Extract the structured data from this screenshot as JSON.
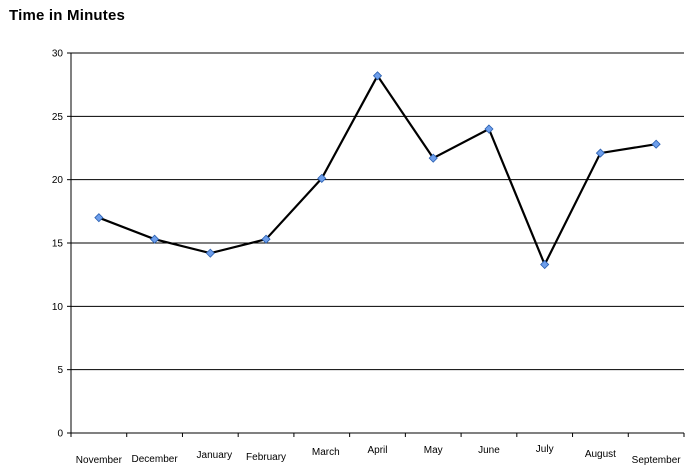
{
  "chart_data": {
    "type": "line",
    "title": "Time in Minutes",
    "xlabel": "",
    "ylabel": "",
    "categories": [
      "November",
      "December",
      "January",
      "February",
      "March",
      "April",
      "May",
      "June",
      "July",
      "August",
      "September"
    ],
    "series": [
      {
        "values": [
          17.0,
          15.3,
          14.2,
          15.3,
          20.1,
          28.2,
          21.7,
          24.0,
          13.3,
          22.1,
          22.8
        ]
      }
    ],
    "ylim": [
      0,
      30
    ],
    "yticks": [
      0,
      5,
      10,
      15,
      20,
      25,
      30
    ],
    "grid": true,
    "legend": "none",
    "colors": {
      "line": "#000000",
      "marker": "#6d9eeb",
      "marker_edge": "#2a5fb0"
    }
  }
}
